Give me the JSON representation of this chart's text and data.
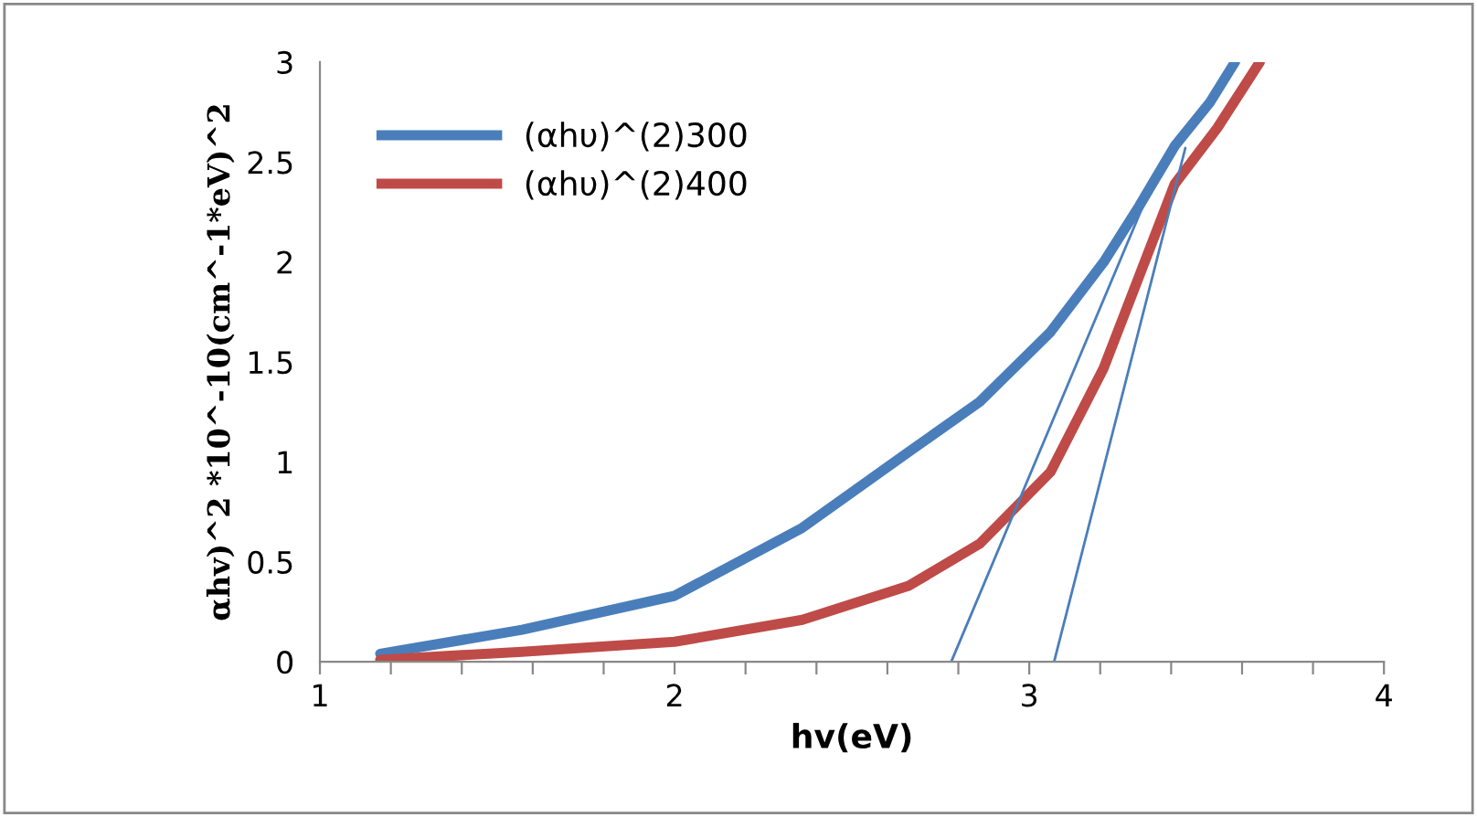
{
  "chart_data": {
    "type": "line",
    "xlabel": "hv(eV)",
    "ylabel": "αhv)^2 *10^-10(cm^-1*eV)^2",
    "xlim": [
      1,
      4
    ],
    "ylim": [
      0,
      3
    ],
    "xticks": [
      1,
      {
        "value": 1.2,
        "label": null
      },
      {
        "value": 1.4,
        "label": null
      },
      {
        "value": 1.6,
        "label": null
      },
      {
        "value": 1.8,
        "label": null
      },
      2,
      {
        "value": 2.2,
        "label": null
      },
      {
        "value": 2.4,
        "label": null
      },
      {
        "value": 2.6,
        "label": null
      },
      {
        "value": 2.8,
        "label": null
      },
      3,
      {
        "value": 3.2,
        "label": null
      },
      {
        "value": 3.4,
        "label": null
      },
      {
        "value": 3.6,
        "label": null
      },
      {
        "value": 3.8,
        "label": null
      },
      4
    ],
    "yticks": [
      0,
      0.5,
      1,
      1.5,
      2,
      2.5,
      3
    ],
    "grid": false,
    "legend": "top left",
    "marker": "none",
    "line_style": "solid",
    "series": [
      {
        "name": "(αhυ)^(2)300",
        "color": "#4a7ebb",
        "x": [
          1.17,
          1.57,
          2.0,
          2.36,
          2.66,
          2.86,
          3.06,
          3.21,
          3.31,
          3.41,
          3.51,
          3.58
        ],
        "values": [
          0.04,
          0.16,
          0.33,
          0.67,
          1.05,
          1.3,
          1.65,
          2.0,
          2.28,
          2.58,
          2.8,
          3.0
        ]
      },
      {
        "name": "(αhυ)^(2)400",
        "color": "#be4b48",
        "x": [
          1.17,
          1.57,
          2.0,
          2.36,
          2.66,
          2.86,
          3.06,
          3.21,
          3.31,
          3.41,
          3.53,
          3.65
        ],
        "values": [
          0.01,
          0.05,
          0.1,
          0.21,
          0.38,
          0.59,
          0.95,
          1.47,
          1.93,
          2.39,
          2.67,
          3.0
        ]
      },
      {
        "type": "line",
        "color": "#4a7ebb",
        "x": [
          2.78,
          3.33
        ],
        "values": [
          0,
          2.32
        ]
      },
      {
        "type": "line",
        "color": "#4a7ebb",
        "x": [
          3.07,
          3.44
        ],
        "values": [
          0,
          2.57
        ]
      }
    ]
  }
}
